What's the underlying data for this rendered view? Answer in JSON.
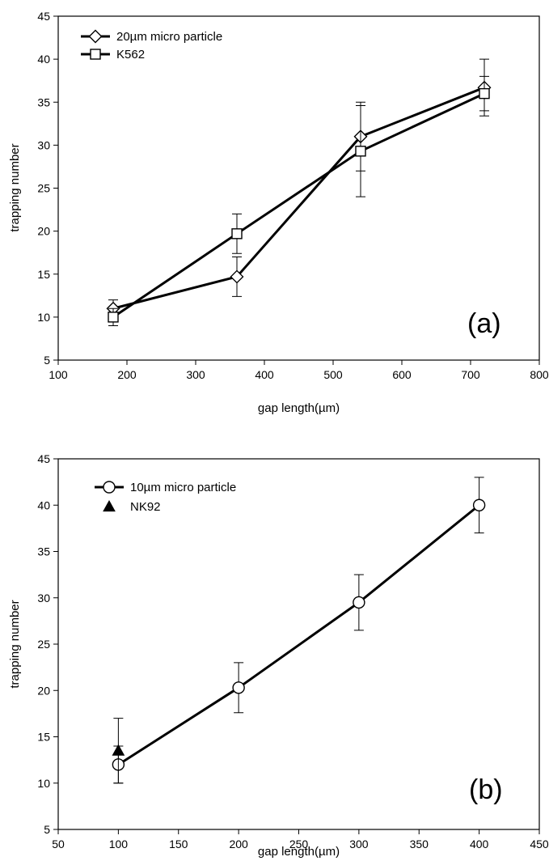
{
  "chart_data": [
    {
      "panel_label": "(a)",
      "type": "line",
      "xlabel": "gap length(µm)",
      "ylabel": "trapping number",
      "xlim": [
        100,
        800
      ],
      "ylim": [
        5,
        45
      ],
      "xticks": [
        100,
        200,
        300,
        400,
        500,
        600,
        700,
        800
      ],
      "yticks": [
        5,
        10,
        15,
        20,
        25,
        30,
        35,
        40,
        45
      ],
      "legend_position": "top-left",
      "grid": false,
      "series": [
        {
          "name": "20µm micro particle",
          "marker": "diamond-open",
          "line": true,
          "x": [
            180,
            360,
            540,
            720
          ],
          "y": [
            11,
            14.7,
            31,
            36.7
          ],
          "err": [
            1,
            2.3,
            4,
            3.3
          ]
        },
        {
          "name": "K562",
          "marker": "square-open",
          "line": true,
          "x": [
            180,
            360,
            540,
            720
          ],
          "y": [
            10,
            19.7,
            29.3,
            36
          ],
          "err": [
            1,
            2.3,
            5.3,
            2
          ]
        }
      ]
    },
    {
      "panel_label": "(b)",
      "type": "line",
      "xlabel": "gap length(µm)",
      "ylabel": "trapping number",
      "xlim": [
        50,
        450
      ],
      "ylim": [
        5,
        45
      ],
      "xticks": [
        50,
        100,
        150,
        200,
        250,
        300,
        350,
        400,
        450
      ],
      "yticks": [
        5,
        10,
        15,
        20,
        25,
        30,
        35,
        40,
        45
      ],
      "legend_position": "top-left",
      "grid": false,
      "series": [
        {
          "name": "10µm micro particle",
          "marker": "circle-open",
          "line": true,
          "x": [
            100,
            200,
            300,
            400
          ],
          "y": [
            12,
            20.3,
            29.5,
            40
          ],
          "err": [
            2,
            2.7,
            3,
            3
          ]
        },
        {
          "name": "NK92",
          "marker": "triangle-filled",
          "line": false,
          "x": [
            100
          ],
          "y": [
            13.5
          ],
          "err": [
            3.5
          ]
        }
      ]
    }
  ]
}
